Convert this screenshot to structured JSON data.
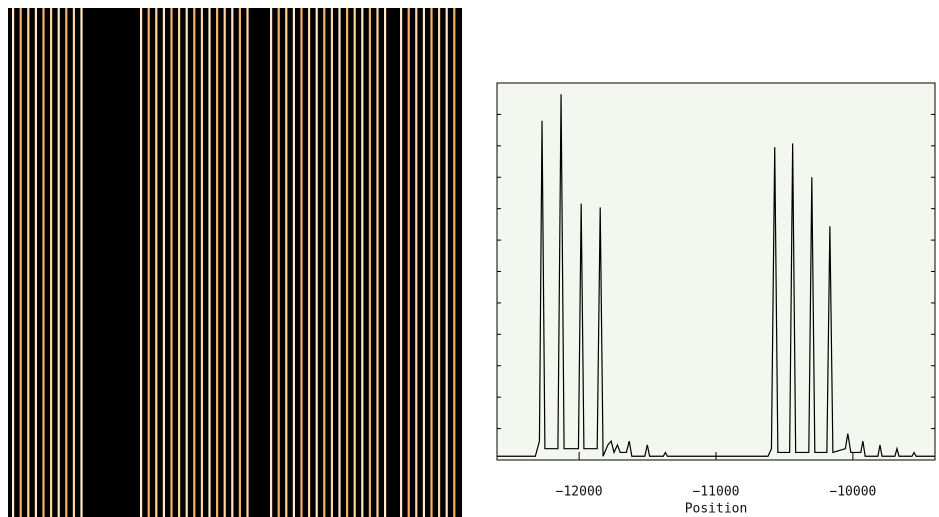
{
  "chart_data": {
    "type": "line",
    "x_label": "Position",
    "x": [
      -12600,
      -12320,
      -12290,
      -12271,
      -12250,
      -12155,
      -12132,
      -12110,
      -12005,
      -11985,
      -11965,
      -11868,
      -11846,
      -11825,
      -11790,
      -11766,
      -11745,
      -11720,
      -11700,
      -11655,
      -11634,
      -11615,
      -11520,
      -11502,
      -11485,
      -11385,
      -11370,
      -11355,
      -10620,
      -10595,
      -10571,
      -10548,
      -10462,
      -10440,
      -10418,
      -10322,
      -10300,
      -10278,
      -10190,
      -10168,
      -10146,
      -10055,
      -10037,
      -10015,
      -9942,
      -9927,
      -9910,
      -9817,
      -9802,
      -9787,
      -9693,
      -9678,
      -9663,
      -9568,
      -9553,
      -9538,
      -9400
    ],
    "series": [
      {
        "color": "#000000",
        "values": [
          1,
          1,
          5,
          90,
          3,
          3,
          97,
          3,
          3,
          68,
          3,
          3,
          67,
          1,
          4,
          5,
          2,
          4,
          2,
          2,
          5,
          1,
          1,
          4,
          1,
          1,
          2,
          1,
          1,
          3,
          83,
          2,
          2,
          84,
          2,
          2,
          75,
          2,
          2,
          62,
          2,
          3,
          7,
          2,
          2,
          5,
          1,
          1,
          4,
          1,
          1,
          3,
          1,
          1,
          2,
          1,
          1
        ]
      }
    ],
    "xlim": [
      -12600,
      -9400
    ],
    "ylim": [
      0,
      100
    ],
    "xticks": [
      {
        "value": -12000,
        "label": "−12000"
      },
      {
        "value": -11000,
        "label": "−11000"
      },
      {
        "value": -10000,
        "label": "−10000"
      }
    ]
  }
}
